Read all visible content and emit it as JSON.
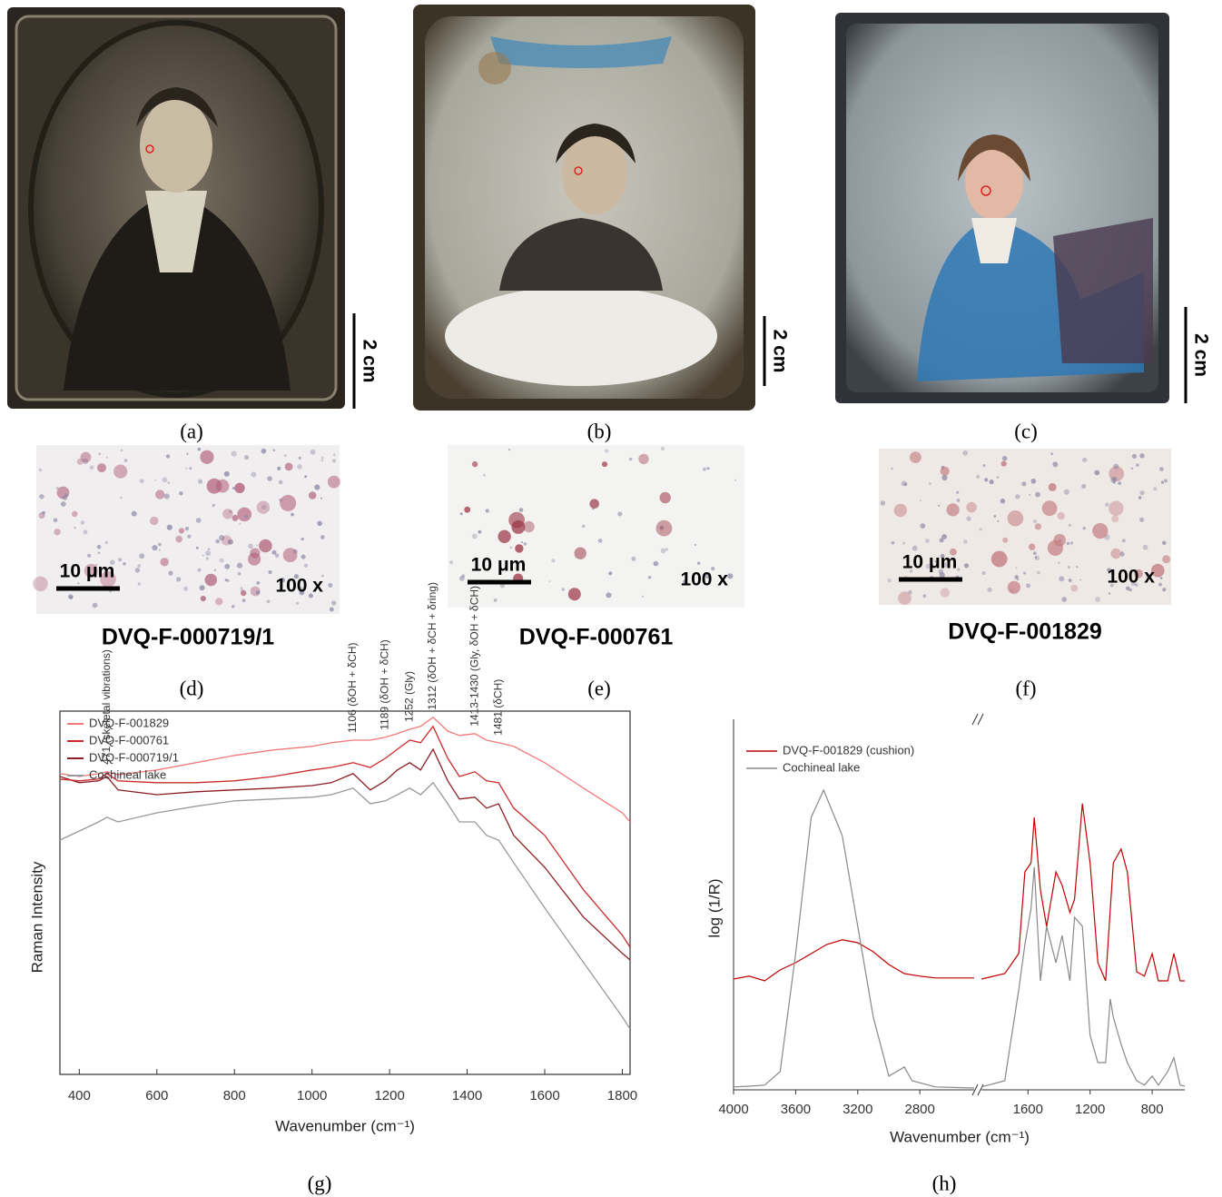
{
  "photos": [
    {
      "scale_bar": "2 cm",
      "caption": "(a)"
    },
    {
      "scale_bar": "2 cm",
      "caption": "(b)"
    },
    {
      "scale_bar": "2 cm",
      "caption": "(c)"
    }
  ],
  "micrographs": [
    {
      "scale_bar": "10 μm",
      "magnification": "100 x",
      "sample": "DVQ-F-000719/1",
      "caption": "(d)"
    },
    {
      "scale_bar": "10 μm",
      "magnification": "100 x",
      "sample": "DVQ-F-000761",
      "caption": "(e)"
    },
    {
      "scale_bar": "10 μm",
      "magnification": "100 x",
      "sample": "DVQ-F-001829",
      "caption": "(f)"
    }
  ],
  "chart_data": [
    {
      "type": "line",
      "caption": "(g)",
      "xlabel": "Wavenumber (cm⁻¹)",
      "ylabel": "Raman Intensity",
      "xlim": [
        350,
        1820
      ],
      "xticks": [
        400,
        600,
        800,
        1000,
        1200,
        1400,
        1600,
        1800
      ],
      "ylim": [
        0,
        100
      ],
      "legend": "top-left",
      "x": [
        350,
        400,
        450,
        471,
        500,
        600,
        700,
        800,
        900,
        1000,
        1050,
        1106,
        1150,
        1189,
        1220,
        1252,
        1280,
        1312,
        1350,
        1380,
        1420,
        1450,
        1481,
        1520,
        1600,
        1700,
        1800,
        1820
      ],
      "series": [
        {
          "name": "DVQ-F-001829",
          "color": "#f07a7a",
          "values": [
            82.8,
            82,
            82.8,
            83.3,
            82.5,
            83.8,
            85.8,
            87.8,
            89.3,
            90.3,
            91.3,
            92,
            92,
            92.8,
            93.8,
            95,
            95.8,
            98.3,
            94.5,
            93.3,
            93.8,
            92,
            91.3,
            90.3,
            85.8,
            78.8,
            72,
            69.5
          ]
        },
        {
          "name": "DVQ-F-000761",
          "color": "#cc2b2b",
          "values": [
            81.3,
            80.8,
            81.3,
            82.8,
            80.8,
            80.3,
            80.3,
            80.8,
            82,
            83.8,
            84.5,
            85.8,
            84.5,
            87,
            89.5,
            92,
            91.3,
            95.8,
            87,
            82,
            83.3,
            80.8,
            80.3,
            73.3,
            65.8,
            50.8,
            38.3,
            35
          ]
        },
        {
          "name": "DVQ-F-000719/1",
          "color": "#8b1e24",
          "values": [
            82,
            80.3,
            80.8,
            82,
            78.3,
            77,
            77.8,
            78.3,
            78.8,
            79.5,
            80.3,
            82.8,
            78.3,
            80.8,
            83.8,
            85.8,
            83.8,
            89.5,
            80.8,
            75.8,
            76.3,
            73.3,
            74.5,
            65.8,
            57,
            43.3,
            33.3,
            31.5
          ]
        },
        {
          "name": "Cochineal lake",
          "color": "#999999",
          "values": [
            64.5,
            67,
            69.5,
            70.8,
            69.5,
            72,
            73.8,
            75.3,
            75.8,
            76.3,
            77,
            78.8,
            74.5,
            75.3,
            77,
            78.8,
            77,
            80.3,
            74.5,
            69.5,
            69.5,
            65.8,
            64.5,
            58.3,
            45.8,
            30.8,
            15.8,
            12.5
          ]
        }
      ],
      "annotations": [
        {
          "text": "471 (skeletal vibrations)",
          "x": 471
        },
        {
          "text": "1106 (δOH + δCH)",
          "x": 1106
        },
        {
          "text": "1189 (δOH + δCH)",
          "x": 1189
        },
        {
          "text": "1252 (Gly)",
          "x": 1252
        },
        {
          "text": "1312 (δOH + δCH + δring)",
          "x": 1312
        },
        {
          "text": "1413-1430 (Gly, δOH + δCH)",
          "x": 1420
        },
        {
          "text": "1481 (δCH)",
          "x": 1481
        }
      ]
    },
    {
      "type": "line",
      "caption": "(h)",
      "xlabel": "Wavenumber (cm⁻¹)",
      "ylabel": "log (1/R)",
      "xlim": [
        4000,
        590
      ],
      "axis_break": [
        2450,
        1900
      ],
      "xticks": [
        4000,
        3600,
        3200,
        2800,
        1600,
        1200,
        800
      ],
      "ylim": [
        0,
        100
      ],
      "legend": "top-left",
      "series": [
        {
          "name": "DVQ-F-001829 (cushion)",
          "color": "#c00000",
          "x": [
            4000,
            3900,
            3800,
            3700,
            3600,
            3500,
            3400,
            3300,
            3200,
            3100,
            3000,
            2900,
            2800,
            2700,
            2450,
            2200,
            1900,
            1750,
            1660,
            1620,
            1580,
            1560,
            1520,
            1480,
            1420,
            1380,
            1330,
            1300,
            1250,
            1200,
            1150,
            1100,
            1050,
            1000,
            960,
            900,
            850,
            800,
            760,
            700,
            660,
            620,
            590
          ],
          "values": [
            30.5,
            31.3,
            30,
            33,
            35,
            37.5,
            40,
            41.3,
            40.5,
            38,
            34.5,
            32,
            31.3,
            30.8,
            30.8,
            null,
            30.5,
            32,
            37.5,
            60,
            62.5,
            75,
            55,
            45,
            60,
            56.3,
            48.8,
            52.5,
            78.8,
            62.5,
            35,
            30,
            62.5,
            66.3,
            60,
            32.5,
            31.3,
            37.5,
            30,
            30,
            37.5,
            30,
            30
          ]
        },
        {
          "name": "Cochineal lake",
          "color": "#888888",
          "x": [
            4000,
            3900,
            3800,
            3700,
            3600,
            3500,
            3420,
            3300,
            3200,
            3100,
            3000,
            2950,
            2900,
            2850,
            2700,
            2450,
            2200,
            1900,
            1750,
            1660,
            1620,
            1580,
            1560,
            1520,
            1480,
            1420,
            1380,
            1330,
            1300,
            1250,
            1200,
            1150,
            1100,
            1070,
            1050,
            1000,
            960,
            900,
            850,
            800,
            760,
            700,
            660,
            620,
            590
          ],
          "values": [
            0.8,
            1,
            1.3,
            5,
            37.5,
            75,
            82.5,
            70,
            45,
            20,
            3.8,
            5,
            6.3,
            2.5,
            0.8,
            0.5,
            null,
            0.8,
            2.5,
            27.5,
            40,
            50,
            61.3,
            30,
            45,
            35,
            42.5,
            30,
            47.5,
            45,
            15,
            7.5,
            7.5,
            25,
            20,
            12.5,
            7.5,
            2.5,
            1.3,
            3.8,
            1.3,
            5,
            8.8,
            1.3,
            1
          ]
        }
      ]
    }
  ]
}
